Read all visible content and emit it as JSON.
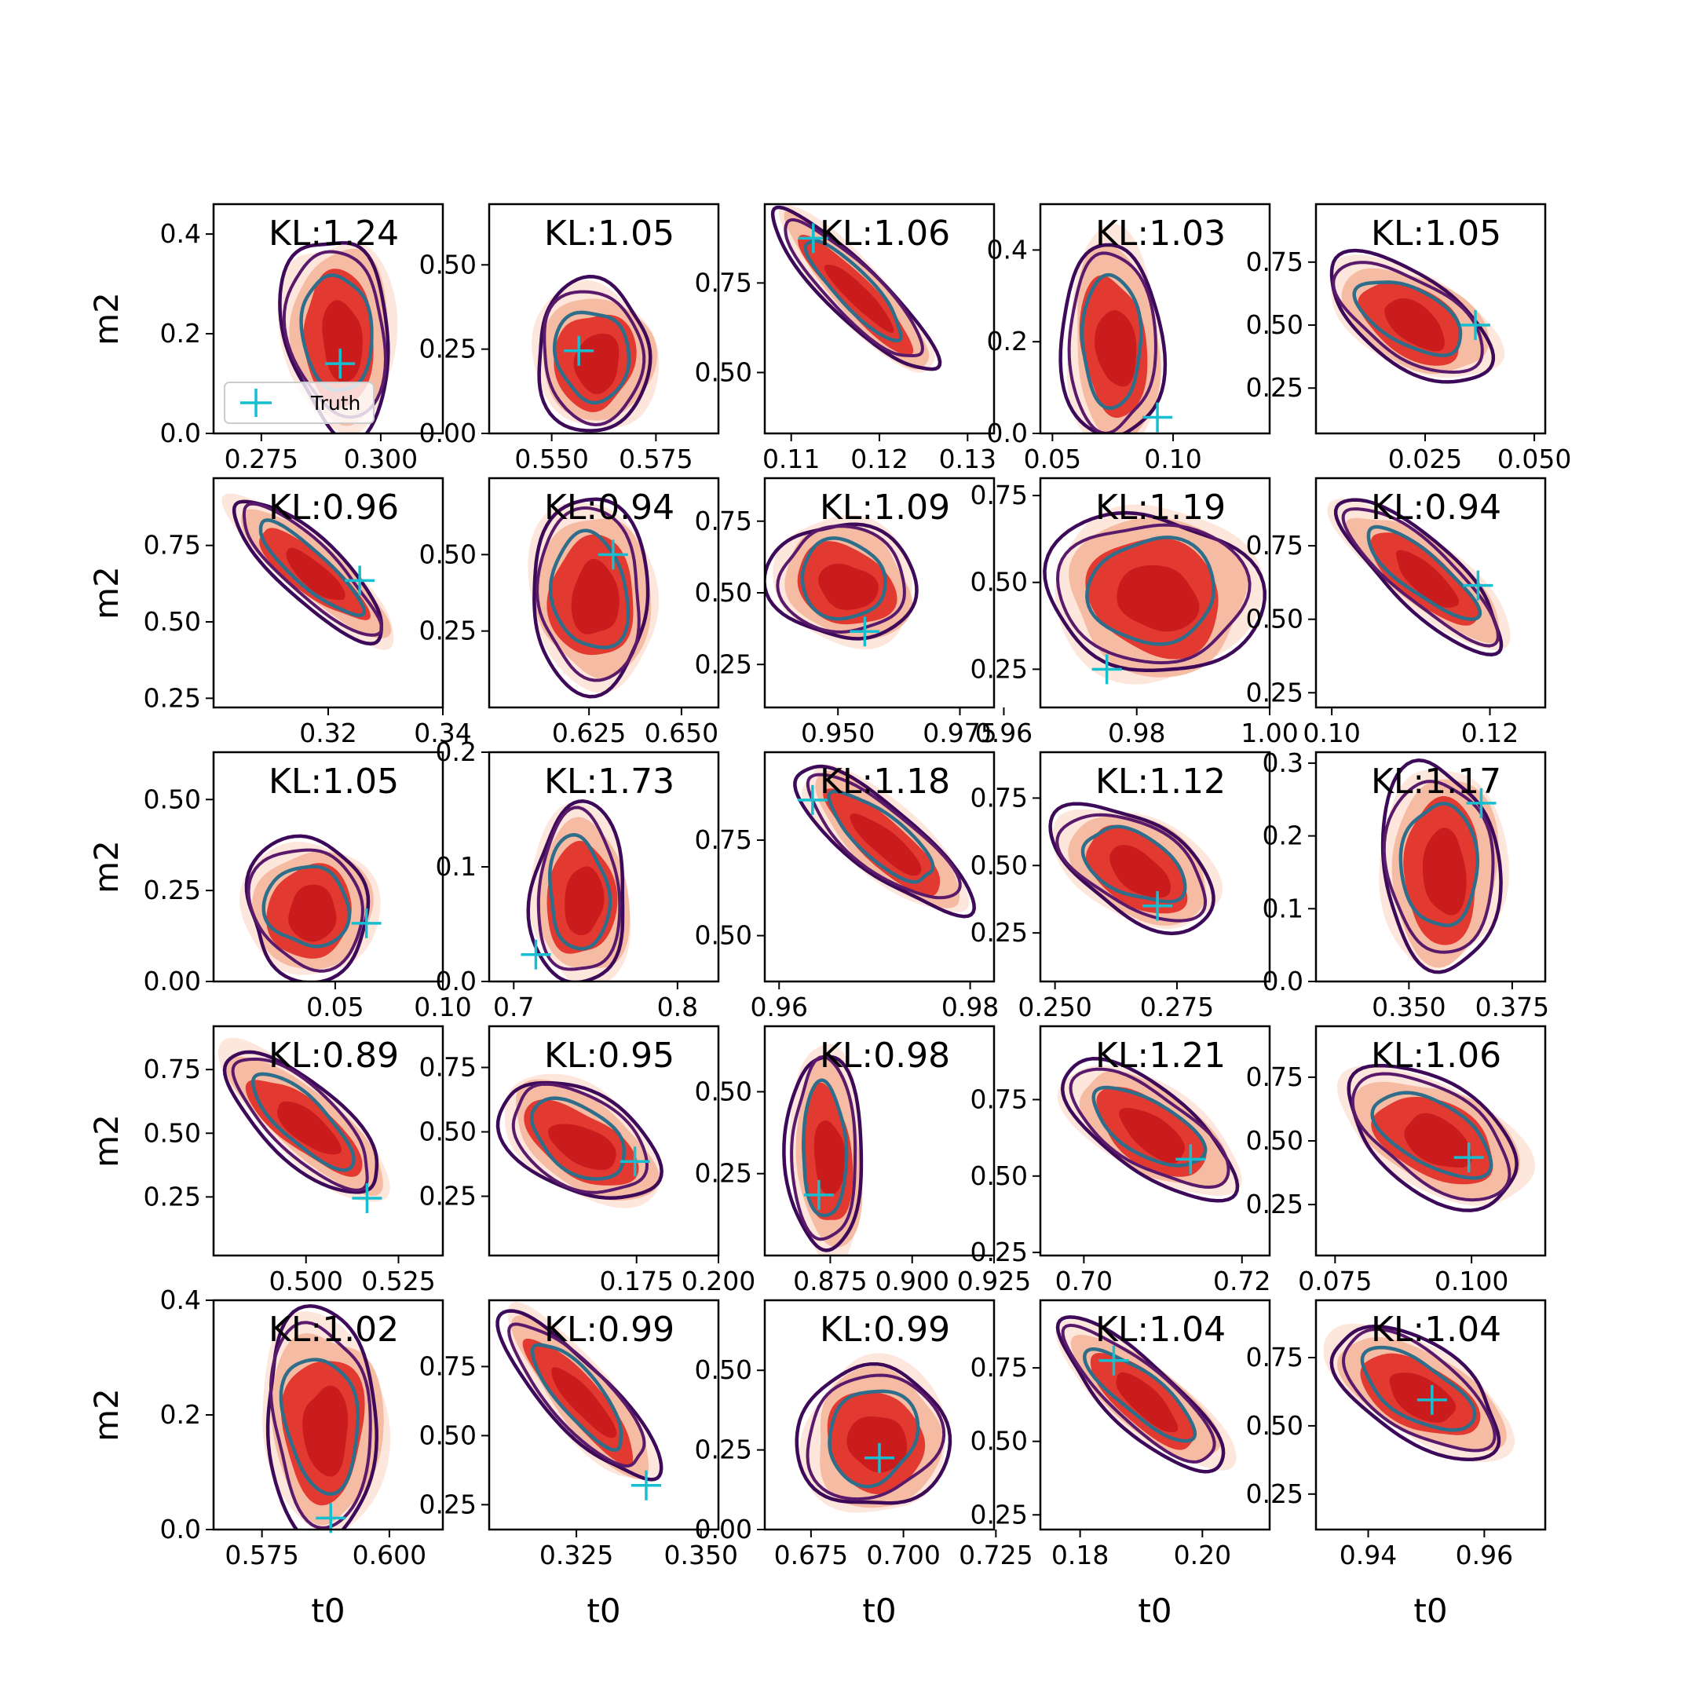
{
  "figure": {
    "xlabel": "t0",
    "ylabel": "m2",
    "legend_label": "Truth",
    "colors": {
      "truth": "#17becf",
      "fill_outer": "#fde0d2",
      "fill_mid": "#f6b9a0",
      "fill_inner": "#e0332b",
      "fill_core": "#c91a1c",
      "line_outer": "#3d0a5a",
      "line_mid": "#5a1a6b",
      "line_inner": "#2f6e8a",
      "frame": "#000000"
    }
  },
  "chart_data": [
    {
      "type": "contour",
      "kl_text": "KL:1.24",
      "xlabel": "",
      "ylabel": "m2",
      "xlim": [
        0.265,
        0.313
      ],
      "ylim": [
        0.0,
        0.46
      ],
      "xticks": [
        "0.275",
        "0.300"
      ],
      "yticks": [
        "0.0",
        "0.2",
        "0.4"
      ],
      "truth": [
        0.2915,
        0.14
      ],
      "legend": "lower-left",
      "shape": {
        "ang": 0.1,
        "rx": 0.22,
        "ry": 0.4,
        "cx": 0.55,
        "cy": 0.42,
        "tilt": 0.25
      }
    },
    {
      "type": "contour",
      "kl_text": "KL:1.05",
      "xlabel": "",
      "ylabel": "",
      "xlim": [
        0.535,
        0.59
      ],
      "ylim": [
        0.0,
        0.68
      ],
      "xticks": [
        "0.550",
        "0.575"
      ],
      "yticks": [
        "0.00",
        "0.25",
        "0.50"
      ],
      "truth": [
        0.5565,
        0.245
      ],
      "shape": {
        "ang": 0.05,
        "rx": 0.24,
        "ry": 0.3,
        "cx": 0.46,
        "cy": 0.33,
        "tilt": 0.1
      }
    },
    {
      "type": "contour",
      "kl_text": "KL:1.06",
      "xlabel": "",
      "ylabel": "",
      "xlim": [
        0.107,
        0.133
      ],
      "ylim": [
        0.33,
        0.97
      ],
      "xticks": [
        "0.11",
        "0.12",
        "0.13"
      ],
      "yticks": [
        "0.50",
        "0.75"
      ],
      "truth": [
        0.1125,
        0.875
      ],
      "shape": {
        "ang": -0.8,
        "rx": 0.46,
        "ry": 0.11,
        "cx": 0.4,
        "cy": 0.62,
        "tilt": 0
      }
    },
    {
      "type": "contour",
      "kl_text": "KL:1.03",
      "xlabel": "",
      "ylabel": "",
      "xlim": [
        0.045,
        0.14
      ],
      "ylim": [
        0.0,
        0.5
      ],
      "xticks": [
        "0.05",
        "0.10"
      ],
      "yticks": [
        "0.0",
        "0.2",
        "0.4"
      ],
      "truth": [
        0.0935,
        0.035
      ],
      "shape": {
        "ang": 0.06,
        "rx": 0.2,
        "ry": 0.42,
        "cx": 0.32,
        "cy": 0.4,
        "tilt": -0.1
      }
    },
    {
      "type": "contour",
      "kl_text": "KL:1.05",
      "xlabel": "",
      "ylabel": "",
      "xlim": [
        0.0,
        0.0525
      ],
      "ylim": [
        0.07,
        0.98
      ],
      "xticks": [
        "0.025",
        "0.050"
      ],
      "yticks": [
        "0.25",
        "0.50",
        "0.75"
      ],
      "truth": [
        0.0365,
        0.5
      ],
      "shape": {
        "ang": -0.55,
        "rx": 0.37,
        "ry": 0.19,
        "cx": 0.42,
        "cy": 0.5,
        "tilt": 0
      }
    },
    {
      "type": "contour",
      "kl_text": "KL:0.96",
      "xlabel": "",
      "ylabel": "m2",
      "xlim": [
        0.3,
        0.34
      ],
      "ylim": [
        0.22,
        0.97
      ],
      "xticks": [
        "0.32",
        "0.34"
      ],
      "yticks": [
        "0.25",
        "0.50",
        "0.75"
      ],
      "truth": [
        0.3255,
        0.635
      ],
      "shape": {
        "ang": -0.72,
        "rx": 0.42,
        "ry": 0.12,
        "cx": 0.43,
        "cy": 0.6,
        "tilt": 0
      }
    },
    {
      "type": "contour",
      "kl_text": "KL:0.94",
      "xlabel": "",
      "ylabel": "",
      "xlim": [
        0.598,
        0.66
      ],
      "ylim": [
        0.0,
        0.75
      ],
      "xticks": [
        "0.625",
        "0.650"
      ],
      "yticks": [
        "0.25",
        "0.50"
      ],
      "truth": [
        0.6315,
        0.5
      ],
      "shape": {
        "ang": 0.05,
        "rx": 0.25,
        "ry": 0.38,
        "cx": 0.45,
        "cy": 0.5,
        "tilt": -0.1
      }
    },
    {
      "type": "contour",
      "kl_text": "KL:1.09",
      "xlabel": "",
      "ylabel": "",
      "xlim": [
        0.935,
        0.982
      ],
      "ylim": [
        0.1,
        0.9
      ],
      "xticks": [
        "0.950",
        "0.975"
      ],
      "yticks": [
        "0.25",
        "0.50",
        "0.75"
      ],
      "truth": [
        0.9555,
        0.365
      ],
      "shape": {
        "ang": -0.35,
        "rx": 0.3,
        "ry": 0.24,
        "cx": 0.35,
        "cy": 0.55,
        "tilt": 0
      }
    },
    {
      "type": "contour",
      "kl_text": "KL:1.19",
      "xlabel": "",
      "ylabel": "",
      "xlim": [
        0.9655,
        1.0
      ],
      "ylim": [
        0.14,
        0.8
      ],
      "xticks": [
        "0.96",
        "0.98",
        "1.00"
      ],
      "yticks": [
        "0.25",
        "0.50",
        "0.75"
      ],
      "truth": [
        0.9755,
        0.25
      ],
      "shape": {
        "ang": -0.2,
        "rx": 0.42,
        "ry": 0.34,
        "cx": 0.5,
        "cy": 0.5,
        "tilt": 0
      }
    },
    {
      "type": "contour",
      "kl_text": "KL:0.94",
      "xlabel": "",
      "ylabel": "",
      "xlim": [
        0.098,
        0.127
      ],
      "ylim": [
        0.2,
        0.98
      ],
      "xticks": [
        "0.10",
        "0.12"
      ],
      "yticks": [
        "0.25",
        "0.50",
        "0.75"
      ],
      "truth": [
        0.1185,
        0.615
      ],
      "shape": {
        "ang": -0.7,
        "rx": 0.43,
        "ry": 0.14,
        "cx": 0.47,
        "cy": 0.58,
        "tilt": 0
      }
    },
    {
      "type": "contour",
      "kl_text": "KL:1.05",
      "xlabel": "",
      "ylabel": "m2",
      "xlim": [
        -0.0065,
        0.1
      ],
      "ylim": [
        0.0,
        0.63
      ],
      "xticks": [
        "0.05",
        "0.10"
      ],
      "yticks": [
        "0.00",
        "0.25",
        "0.50"
      ],
      "truth": [
        0.0645,
        0.16
      ],
      "shape": {
        "ang": 0.1,
        "rx": 0.26,
        "ry": 0.28,
        "cx": 0.42,
        "cy": 0.32,
        "tilt": 0
      }
    },
    {
      "type": "contour",
      "kl_text": "KL:1.73",
      "xlabel": "",
      "ylabel": "",
      "xlim": [
        0.685,
        0.825
      ],
      "ylim": [
        0.0,
        0.2
      ],
      "xticks": [
        "0.7",
        "0.8"
      ],
      "yticks": [
        "0.0",
        "0.1",
        "0.2"
      ],
      "truth": [
        0.7135,
        0.0235
      ],
      "shape": {
        "ang": 0.0,
        "rx": 0.2,
        "ry": 0.36,
        "cx": 0.4,
        "cy": 0.38,
        "tilt": -0.15
      }
    },
    {
      "type": "contour",
      "kl_text": "KL:1.18",
      "xlabel": "",
      "ylabel": "",
      "xlim": [
        0.9585,
        0.9825
      ],
      "ylim": [
        0.38,
        0.98
      ],
      "xticks": [
        "0.96",
        "0.98"
      ],
      "yticks": [
        "0.50",
        "0.75"
      ],
      "truth": [
        0.9635,
        0.855
      ],
      "shape": {
        "ang": -0.7,
        "rx": 0.44,
        "ry": 0.14,
        "cx": 0.52,
        "cy": 0.62,
        "tilt": 0
      }
    },
    {
      "type": "contour",
      "kl_text": "KL:1.12",
      "xlabel": "",
      "ylabel": "",
      "xlim": [
        0.247,
        0.294
      ],
      "ylim": [
        0.07,
        0.92
      ],
      "xticks": [
        "0.250",
        "0.275"
      ],
      "yticks": [
        "0.25",
        "0.50",
        "0.75"
      ],
      "truth": [
        0.271,
        0.35
      ],
      "shape": {
        "ang": -0.55,
        "rx": 0.36,
        "ry": 0.2,
        "cx": 0.42,
        "cy": 0.5,
        "tilt": 0
      }
    },
    {
      "type": "contour",
      "kl_text": "KL:1.17",
      "xlabel": "",
      "ylabel": "",
      "xlim": [
        0.3275,
        0.383
      ],
      "ylim": [
        0.0,
        0.315
      ],
      "xticks": [
        "0.350",
        "0.375"
      ],
      "yticks": [
        "0.0",
        "0.1",
        "0.2",
        "0.3"
      ],
      "truth": [
        0.3675,
        0.245
      ],
      "shape": {
        "ang": 0.05,
        "rx": 0.24,
        "ry": 0.42,
        "cx": 0.55,
        "cy": 0.5,
        "tilt": 0
      }
    },
    {
      "type": "contour",
      "kl_text": "KL:0.89",
      "xlabel": "",
      "ylabel": "m2",
      "xlim": [
        0.475,
        0.537
      ],
      "ylim": [
        0.02,
        0.92
      ],
      "xticks": [
        "0.500",
        "0.525"
      ],
      "yticks": [
        "0.25",
        "0.50",
        "0.75"
      ],
      "truth": [
        0.5165,
        0.245
      ],
      "shape": {
        "ang": -0.72,
        "rx": 0.42,
        "ry": 0.15,
        "cx": 0.4,
        "cy": 0.58,
        "tilt": 0
      }
    },
    {
      "type": "contour",
      "kl_text": "KL:0.95",
      "xlabel": "",
      "ylabel": "",
      "xlim": [
        0.13,
        0.2
      ],
      "ylim": [
        0.02,
        0.91
      ],
      "xticks": [
        "0.175",
        "0.200"
      ],
      "yticks": [
        "0.25",
        "0.50",
        "0.75"
      ],
      "truth": [
        0.1745,
        0.385
      ],
      "shape": {
        "ang": -0.55,
        "rx": 0.36,
        "ry": 0.2,
        "cx": 0.4,
        "cy": 0.5,
        "tilt": 0
      }
    },
    {
      "type": "contour",
      "kl_text": "KL:0.98",
      "xlabel": "",
      "ylabel": "",
      "xlim": [
        0.855,
        0.925
      ],
      "ylim": [
        0.0,
        0.7
      ],
      "xticks": [
        "0.875",
        "0.900",
        "0.925"
      ],
      "yticks": [
        "0.25",
        "0.50"
      ],
      "truth": [
        0.8715,
        0.185
      ],
      "shape": {
        "ang": 0.05,
        "rx": 0.15,
        "ry": 0.42,
        "cx": 0.27,
        "cy": 0.45,
        "tilt": 0
      }
    },
    {
      "type": "contour",
      "kl_text": "KL:1.21",
      "xlabel": "",
      "ylabel": "",
      "xlim": [
        0.6945,
        0.7235
      ],
      "ylim": [
        0.24,
        0.99
      ],
      "xticks": [
        "0.70",
        "0.72"
      ],
      "yticks": [
        "0.25",
        "0.50",
        "0.75"
      ],
      "truth": [
        0.7135,
        0.555
      ],
      "shape": {
        "ang": -0.6,
        "rx": 0.4,
        "ry": 0.18,
        "cx": 0.48,
        "cy": 0.55,
        "tilt": 0
      }
    },
    {
      "type": "contour",
      "kl_text": "KL:1.06",
      "xlabel": "",
      "ylabel": "",
      "xlim": [
        0.0715,
        0.1135
      ],
      "ylim": [
        0.05,
        0.95
      ],
      "xticks": [
        "0.075",
        "0.100"
      ],
      "yticks": [
        "0.25",
        "0.50",
        "0.75"
      ],
      "truth": [
        0.0995,
        0.435
      ],
      "shape": {
        "ang": -0.52,
        "rx": 0.4,
        "ry": 0.22,
        "cx": 0.52,
        "cy": 0.52,
        "tilt": 0
      }
    },
    {
      "type": "contour",
      "kl_text": "KL:1.02",
      "xlabel": "t0",
      "ylabel": "m2",
      "xlim": [
        0.5655,
        0.6105
      ],
      "ylim": [
        0.0,
        0.4
      ],
      "xticks": [
        "0.575",
        "0.600"
      ],
      "yticks": [
        "0.0",
        "0.2",
        "0.4"
      ],
      "truth": [
        0.5885,
        0.02
      ],
      "shape": {
        "ang": 0.05,
        "rx": 0.24,
        "ry": 0.45,
        "cx": 0.48,
        "cy": 0.45,
        "tilt": 0.2
      }
    },
    {
      "type": "contour",
      "kl_text": "KL:0.99",
      "xlabel": "t0",
      "ylabel": "",
      "xlim": [
        0.3075,
        0.3535
      ],
      "ylim": [
        0.16,
        0.99
      ],
      "xticks": [
        "0.325",
        "0.350"
      ],
      "yticks": [
        "0.25",
        "0.50",
        "0.75"
      ],
      "truth": [
        0.339,
        0.32
      ],
      "shape": {
        "ang": -0.85,
        "rx": 0.46,
        "ry": 0.13,
        "cx": 0.4,
        "cy": 0.58,
        "tilt": 0
      }
    },
    {
      "type": "contour",
      "kl_text": "KL:0.99",
      "xlabel": "t0",
      "ylabel": "",
      "xlim": [
        0.6625,
        0.7245
      ],
      "ylim": [
        0.0,
        0.72
      ],
      "xticks": [
        "0.675",
        "0.700",
        "0.725"
      ],
      "yticks": [
        "0.00",
        "0.25",
        "0.50"
      ],
      "truth": [
        0.6935,
        0.225
      ],
      "shape": {
        "ang": -0.15,
        "rx": 0.3,
        "ry": 0.3,
        "cx": 0.48,
        "cy": 0.4,
        "tilt": 0
      }
    },
    {
      "type": "contour",
      "kl_text": "KL:1.04",
      "xlabel": "t0",
      "ylabel": "",
      "xlim": [
        0.1735,
        0.211
      ],
      "ylim": [
        0.2,
        0.98
      ],
      "xticks": [
        "0.18",
        "0.20"
      ],
      "yticks": [
        "0.25",
        "0.50",
        "0.75"
      ],
      "truth": [
        0.1855,
        0.775
      ],
      "shape": {
        "ang": -0.72,
        "rx": 0.43,
        "ry": 0.14,
        "cx": 0.45,
        "cy": 0.58,
        "tilt": 0
      }
    },
    {
      "type": "contour",
      "kl_text": "KL:1.04",
      "xlabel": "t0",
      "ylabel": "",
      "xlim": [
        0.931,
        0.9705
      ],
      "ylim": [
        0.12,
        0.96
      ],
      "xticks": [
        "0.94",
        "0.96"
      ],
      "yticks": [
        "0.25",
        "0.50",
        "0.75"
      ],
      "truth": [
        0.951,
        0.595
      ],
      "shape": {
        "ang": -0.55,
        "rx": 0.4,
        "ry": 0.19,
        "cx": 0.45,
        "cy": 0.6,
        "tilt": 0
      }
    }
  ]
}
